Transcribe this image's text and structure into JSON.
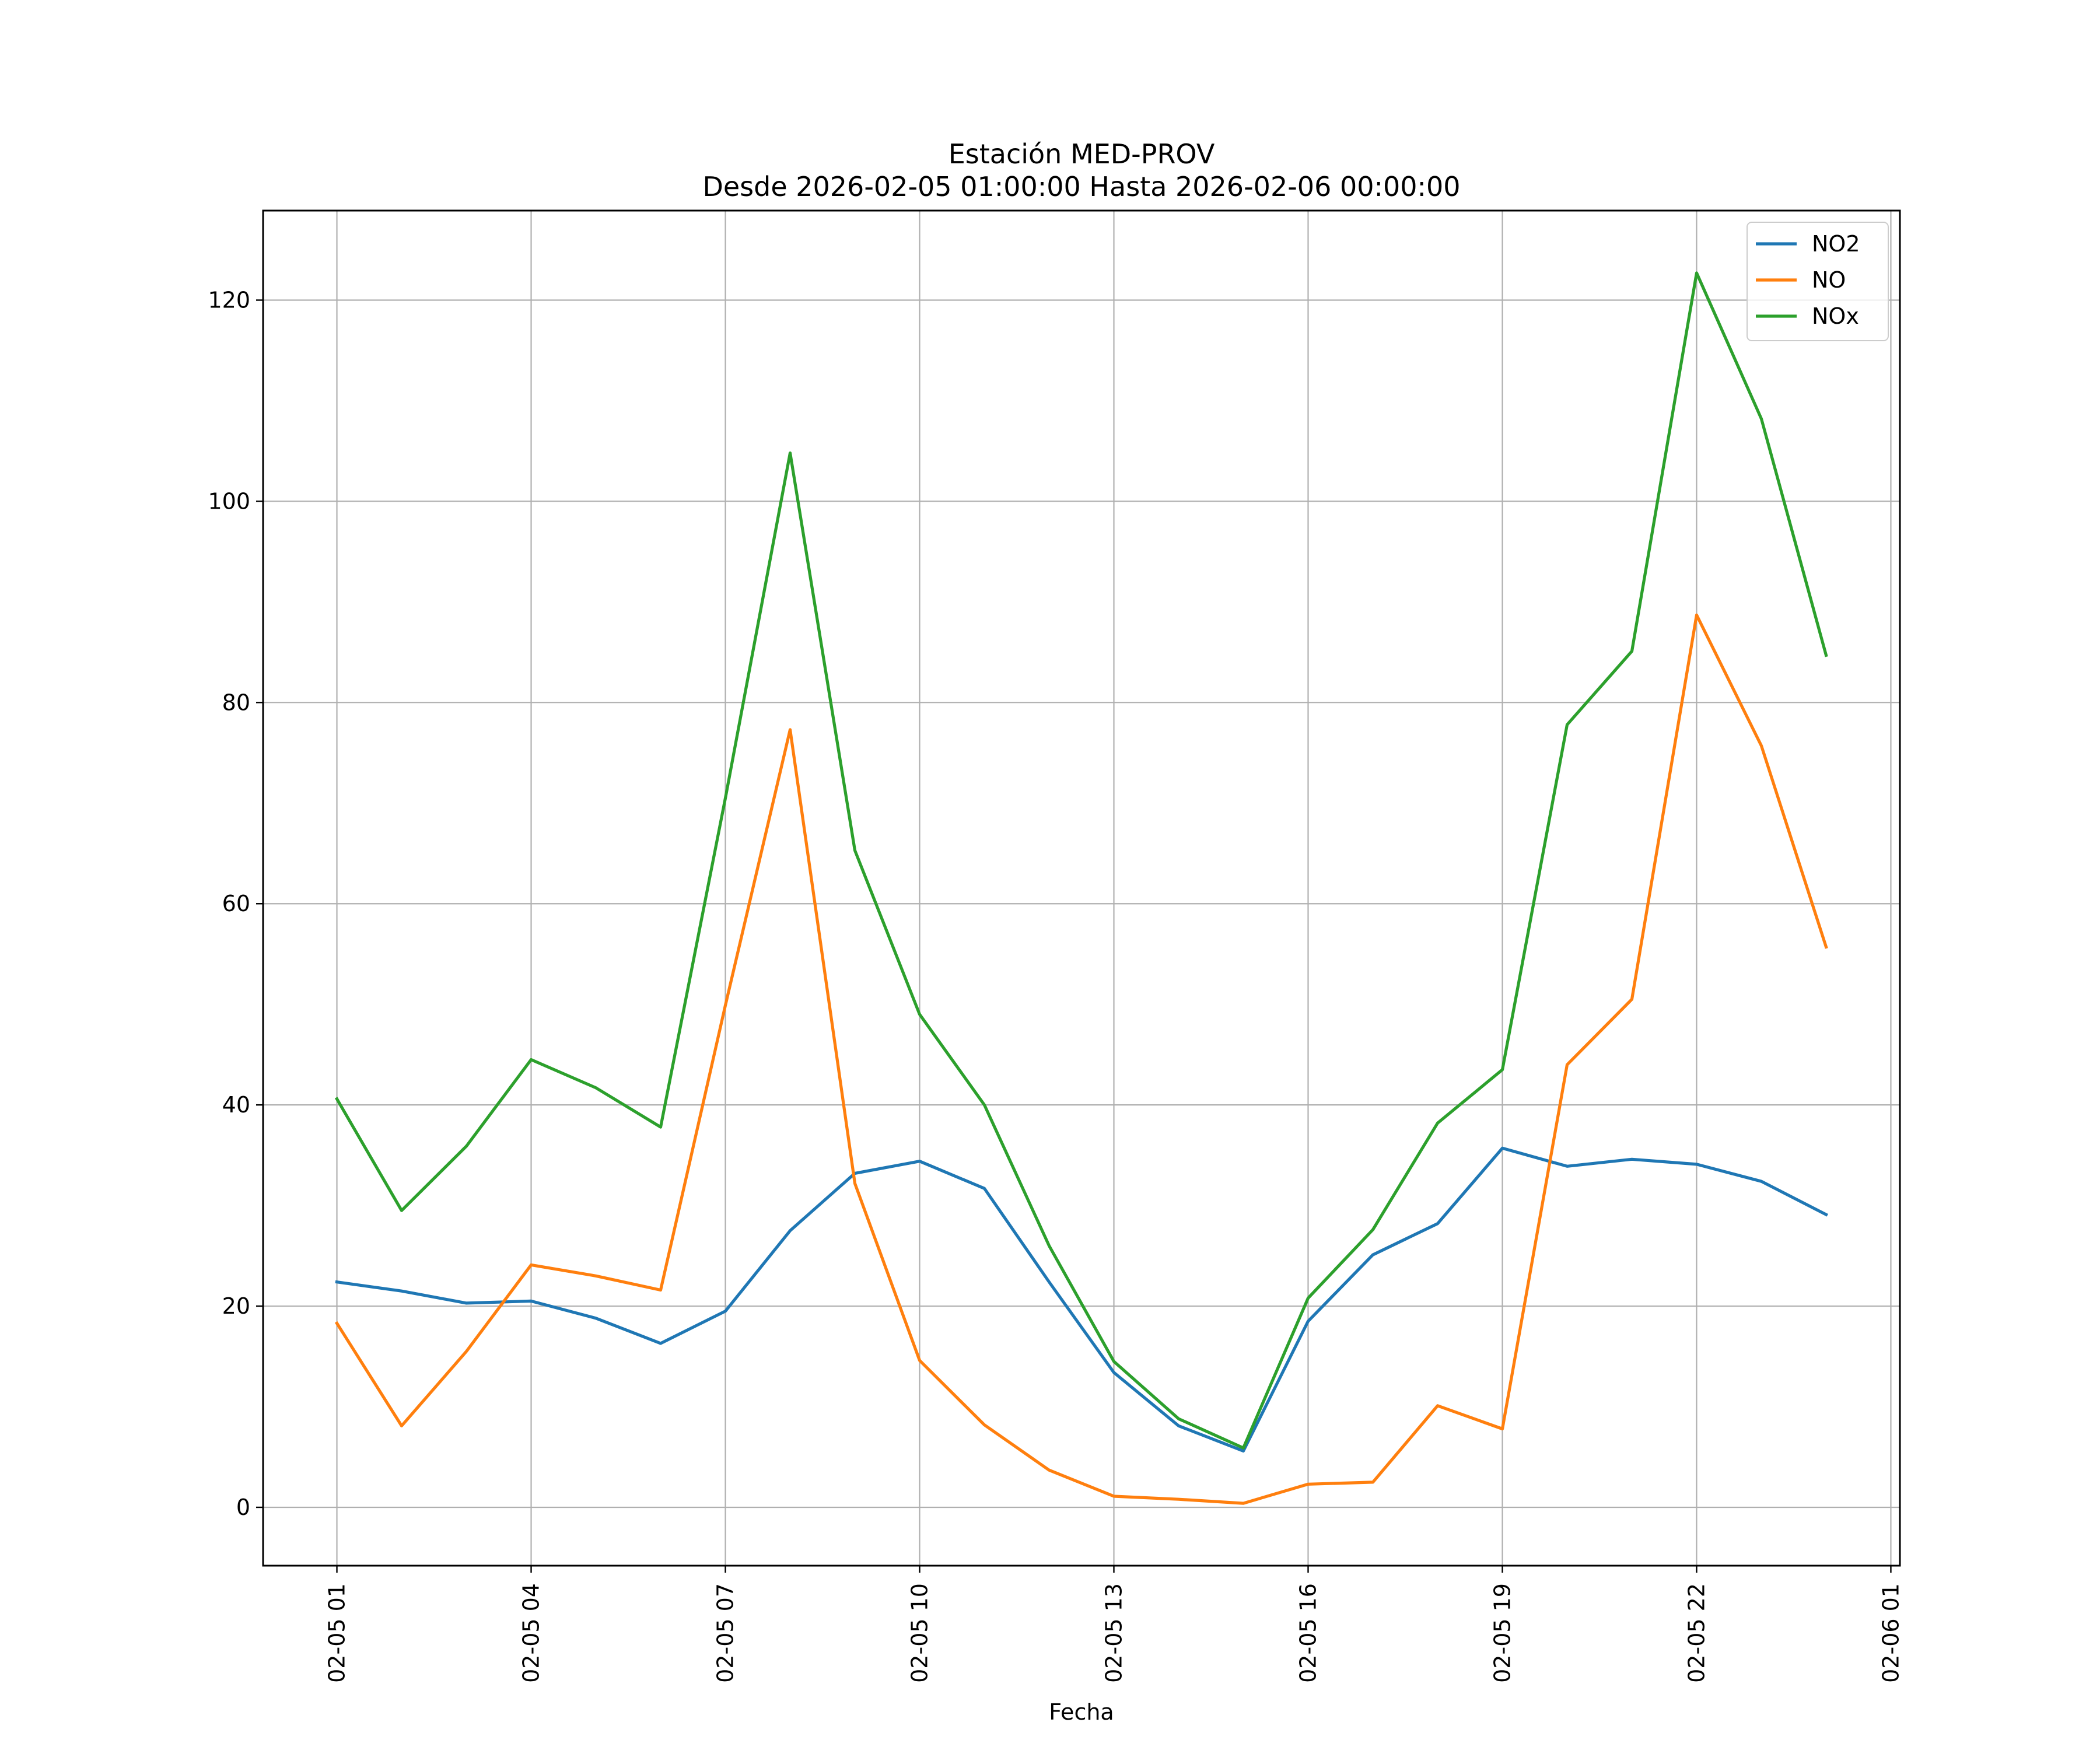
{
  "chart_data": {
    "type": "line",
    "title": "Estación MED-PROV",
    "subtitle": "Desde 2026-02-05 01:00:00 Hasta 2026-02-06 00:00:00",
    "xlabel": "Fecha",
    "ylabel": "",
    "x": [
      "02-05 01",
      "02-05 02",
      "02-05 03",
      "02-05 04",
      "02-05 05",
      "02-05 06",
      "02-05 07",
      "02-05 08",
      "02-05 09",
      "02-05 10",
      "02-05 11",
      "02-05 12",
      "02-05 13",
      "02-05 14",
      "02-05 15",
      "02-05 16",
      "02-05 17",
      "02-05 18",
      "02-05 19",
      "02-05 20",
      "02-05 21",
      "02-05 22",
      "02-05 23",
      "02-06 00"
    ],
    "x_ticks": [
      "02-05 01",
      "02-05 04",
      "02-05 07",
      "02-05 10",
      "02-05 13",
      "02-05 16",
      "02-05 19",
      "02-05 22",
      "02-06 01"
    ],
    "x_range_hours": [
      -1.14,
      24.14
    ],
    "y_ticks": [
      0,
      20,
      40,
      60,
      80,
      100,
      120
    ],
    "ylim": [
      -5.8,
      128.9
    ],
    "grid": true,
    "legend_position": "top-right",
    "series": [
      {
        "name": "NO2",
        "color": "#1f77b4",
        "values": [
          22.4,
          21.5,
          20.3,
          20.5,
          18.8,
          16.3,
          19.5,
          27.5,
          33.2,
          34.4,
          31.7,
          22.4,
          13.4,
          8.1,
          5.6,
          18.5,
          25.1,
          28.2,
          35.7,
          33.9,
          34.6,
          34.1,
          32.4,
          29.1
        ]
      },
      {
        "name": "NO",
        "color": "#ff7f0e",
        "values": [
          18.3,
          8.1,
          15.5,
          24.1,
          23.0,
          21.6,
          49.9,
          77.3,
          32.2,
          14.6,
          8.2,
          3.7,
          1.1,
          0.8,
          0.4,
          2.3,
          2.5,
          10.1,
          7.8,
          44.0,
          50.5,
          88.7,
          75.7,
          55.7
        ]
      },
      {
        "name": "NOx",
        "color": "#2ca02c",
        "values": [
          40.6,
          29.5,
          35.9,
          44.5,
          41.7,
          37.8,
          70.5,
          104.8,
          65.3,
          49.0,
          40.0,
          26.0,
          14.5,
          8.8,
          5.9,
          20.8,
          27.6,
          38.2,
          43.5,
          77.8,
          85.1,
          122.7,
          108.2,
          84.7
        ]
      }
    ]
  }
}
